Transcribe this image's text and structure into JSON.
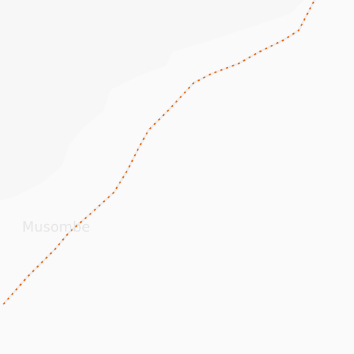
{
  "map": {
    "place_label": "Musombe",
    "colors": {
      "background": "#fafafa",
      "terrain_shade": "#f7f7f7",
      "boundary_casing": "#ededed",
      "boundary_line": "#e65c00",
      "label": "#e6e6e6"
    },
    "features": {
      "boundary_style": "dashed",
      "shaded_region": "upper-left"
    }
  }
}
